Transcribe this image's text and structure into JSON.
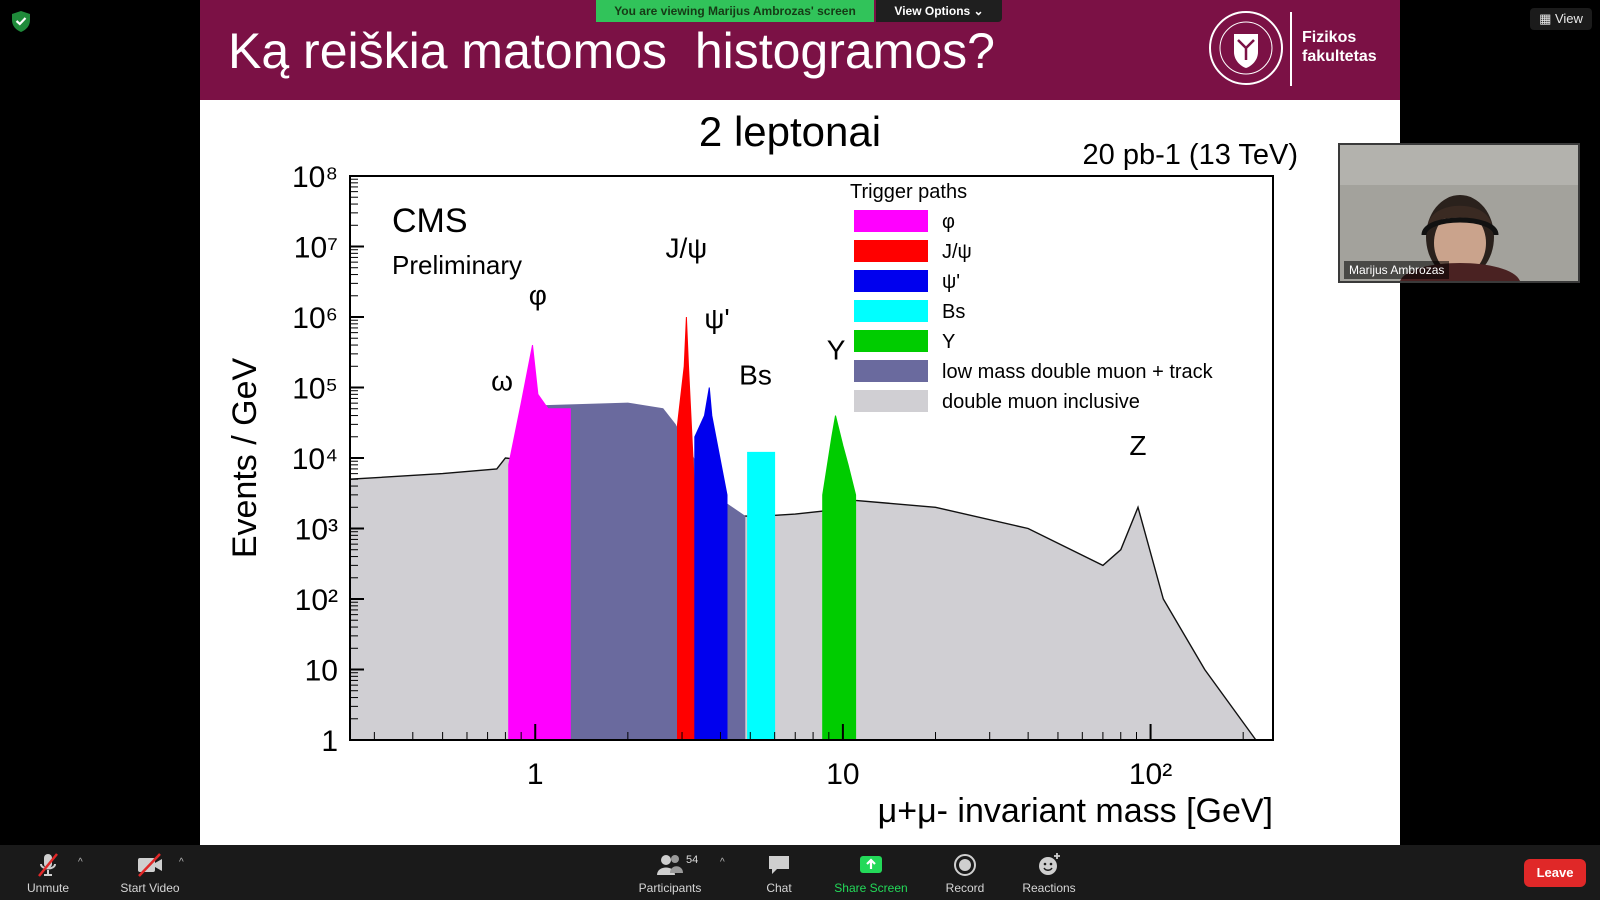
{
  "meeting": {
    "banner_text": "You are viewing Marijus Ambrozas' screen",
    "view_options_label": "View Options ⌄",
    "view_label": "View"
  },
  "slide": {
    "title": "Ką reiškia matomos  histogramos?",
    "faculty": "Fizikos fakultetas",
    "subtitle": "2 leptonai",
    "colors": {
      "header_bg": "#7b1145"
    }
  },
  "chart_data": {
    "type": "area",
    "title": "2 leptonai",
    "luminosity": "20 pb-1 (13 TeV)",
    "experiment": "CMS",
    "experiment_sub": "Preliminary",
    "xlabel": "μ+μ- invariant mass [GeV]",
    "ylabel": "Events / GeV",
    "x_scale": "log",
    "y_scale": "log",
    "xlim": [
      0.25,
      250
    ],
    "ylim": [
      1,
      100000000
    ],
    "x_ticks": [
      {
        "v": 1,
        "label": "1"
      },
      {
        "v": 10,
        "label": "10"
      },
      {
        "v": 100,
        "label": "10²"
      }
    ],
    "y_ticks": [
      {
        "v": 1,
        "label": "1"
      },
      {
        "v": 10,
        "label": "10"
      },
      {
        "v": 100,
        "label": "10²"
      },
      {
        "v": 1000,
        "label": "10³"
      },
      {
        "v": 10000,
        "label": "10⁴"
      },
      {
        "v": 100000,
        "label": "10⁵"
      },
      {
        "v": 1000000,
        "label": "10⁶"
      },
      {
        "v": 10000000,
        "label": "10⁷"
      },
      {
        "v": 100000000,
        "label": "10⁸"
      }
    ],
    "legend_title": "Trigger paths",
    "legend_position": "top-right",
    "series": [
      {
        "name": "double muon inclusive",
        "color": "#d0cfd3",
        "x": [
          0.25,
          0.5,
          0.75,
          0.8,
          1.0,
          1.5,
          2.5,
          3.0,
          3.1,
          3.3,
          3.7,
          4.5,
          5.5,
          7.0,
          9.0,
          9.5,
          11,
          20,
          40,
          70,
          80,
          91,
          110,
          150,
          220
        ],
        "values": [
          5000,
          6000,
          7000,
          10000,
          9000,
          6000,
          4000,
          3000,
          5000,
          2000,
          2000,
          1500,
          1500,
          1600,
          1800,
          3000,
          2500,
          2000,
          1000,
          300,
          500,
          2000,
          100,
          10,
          1
        ]
      },
      {
        "name": "low mass double muon + track",
        "color": "#6a6a9e",
        "x": [
          1.0,
          1.05,
          2.0,
          2.6,
          2.85,
          3.8,
          4.8
        ],
        "values": [
          40000,
          55000,
          60000,
          50000,
          30000,
          3000,
          1500
        ]
      },
      {
        "name": "φ",
        "color": "#ff00ff",
        "x": [
          0.82,
          0.9,
          0.98,
          1.02,
          1.1,
          1.3
        ],
        "values": [
          8000,
          60000,
          400000,
          80000,
          50000,
          50000
        ]
      },
      {
        "name": "J/ψ",
        "color": "#ff0000",
        "x": [
          2.9,
          3.05,
          3.1,
          3.15,
          3.3
        ],
        "values": [
          30000,
          200000,
          1000000,
          200000,
          3000
        ]
      },
      {
        "name": "ψ'",
        "color": "#0000ee",
        "x": [
          3.3,
          3.55,
          3.68,
          3.75,
          4.2
        ],
        "values": [
          20000,
          40000,
          100000,
          40000,
          3000
        ]
      },
      {
        "name": "Bs",
        "color": "#00ffff",
        "x": [
          4.9,
          6.0
        ],
        "values": [
          12000,
          12000
        ]
      },
      {
        "name": "Υ",
        "color": "#00cc00",
        "x": [
          8.6,
          9.2,
          9.46,
          10.0,
          10.4,
          11.0
        ],
        "values": [
          3000,
          20000,
          40000,
          15000,
          8000,
          3000
        ]
      }
    ],
    "annotations": [
      "ω",
      "φ",
      "J/ψ",
      "ψ'",
      "Bs",
      "Υ",
      "Z"
    ]
  },
  "participant": {
    "name": "Marijus Ambrozas"
  },
  "toolbar": {
    "unmute": "Unmute",
    "start_video": "Start Video",
    "participants": "Participants",
    "participants_count": "54",
    "chat": "Chat",
    "share_screen": "Share Screen",
    "record": "Record",
    "reactions": "Reactions",
    "leave": "Leave",
    "colors": {
      "share": "#23d959",
      "leave": "#e02828"
    }
  }
}
